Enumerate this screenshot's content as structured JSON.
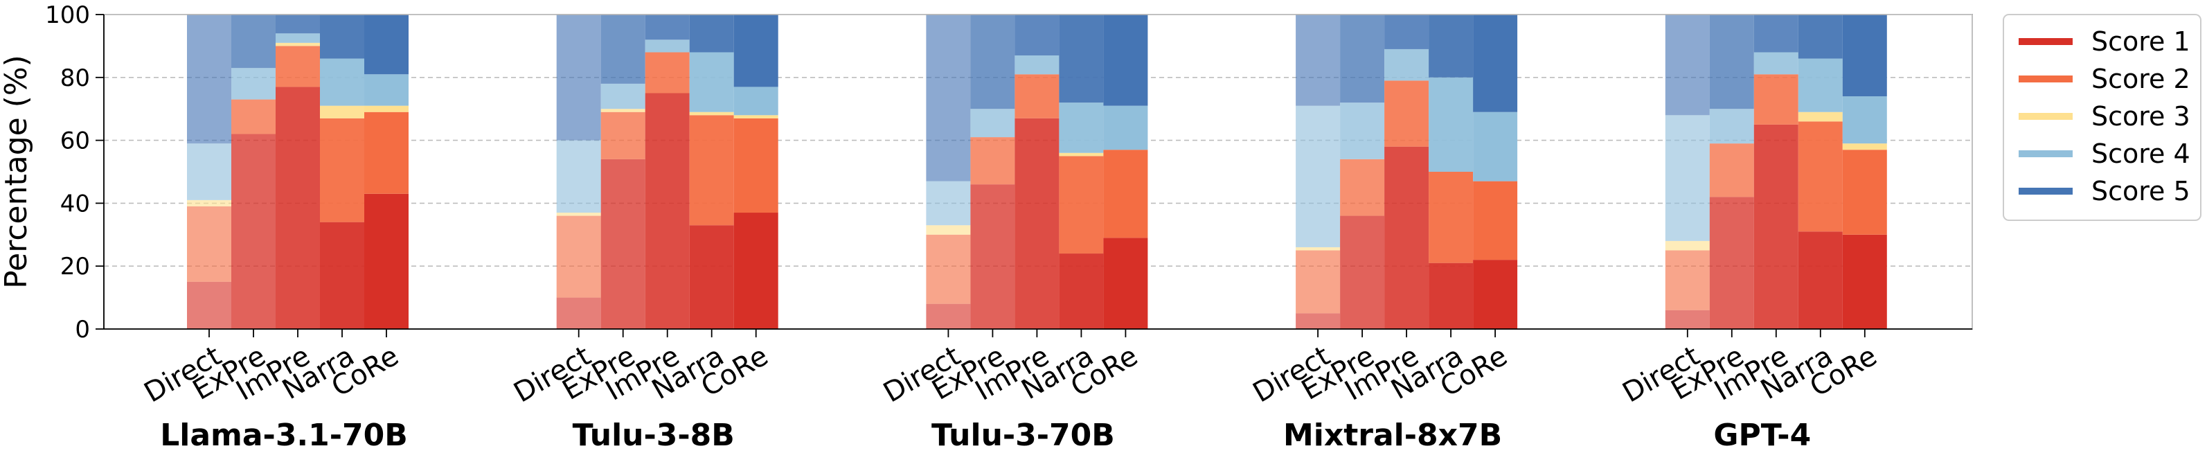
{
  "chart_data": {
    "type": "bar",
    "stacked": true,
    "ylabel": "Percentage (%)",
    "ylim": [
      0,
      100
    ],
    "yticks": [
      0,
      20,
      40,
      60,
      80,
      100
    ],
    "grid": "horizontal dashed",
    "legend_position": "right",
    "conditions": [
      "Direct",
      "ExPre",
      "ImPre",
      "Narra",
      "CoRe"
    ],
    "groups": [
      "Llama-3.1-70B",
      "Tulu-3-8B",
      "Tulu-3-70B",
      "Mixtral-8x7B",
      "GPT-4"
    ],
    "series": [
      {
        "name": "Score 1",
        "color": "#d73027",
        "values": [
          [
            15,
            62,
            77,
            34,
            43
          ],
          [
            10,
            54,
            75,
            33,
            37
          ],
          [
            8,
            46,
            67,
            24,
            29
          ],
          [
            5,
            36,
            58,
            21,
            22
          ],
          [
            6,
            42,
            65,
            31,
            30
          ]
        ]
      },
      {
        "name": "Score 2",
        "color": "#f46d43",
        "values": [
          [
            24,
            11,
            13,
            33,
            26
          ],
          [
            26,
            15,
            13,
            35,
            30
          ],
          [
            22,
            15,
            14,
            31,
            28
          ],
          [
            20,
            18,
            21,
            29,
            25
          ],
          [
            19,
            17,
            16,
            35,
            27
          ]
        ]
      },
      {
        "name": "Score 3",
        "color": "#fee090",
        "values": [
          [
            2,
            0,
            1,
            4,
            2
          ],
          [
            1,
            1,
            0,
            1,
            1
          ],
          [
            3,
            0,
            0,
            1,
            0
          ],
          [
            1,
            0,
            0,
            0,
            0
          ],
          [
            3,
            0,
            0,
            3,
            2
          ]
        ]
      },
      {
        "name": "Score 4",
        "color": "#91bfdb",
        "values": [
          [
            18,
            10,
            3,
            15,
            10
          ],
          [
            23,
            8,
            4,
            19,
            9
          ],
          [
            14,
            9,
            6,
            16,
            14
          ],
          [
            45,
            18,
            10,
            30,
            22
          ],
          [
            40,
            11,
            7,
            17,
            15
          ]
        ]
      },
      {
        "name": "Score 5",
        "color": "#4575b4",
        "values": [
          [
            41,
            17,
            6,
            14,
            19
          ],
          [
            40,
            22,
            8,
            12,
            23
          ],
          [
            53,
            30,
            13,
            28,
            29
          ],
          [
            29,
            28,
            11,
            20,
            31
          ],
          [
            32,
            30,
            12,
            14,
            26
          ]
        ]
      }
    ]
  }
}
